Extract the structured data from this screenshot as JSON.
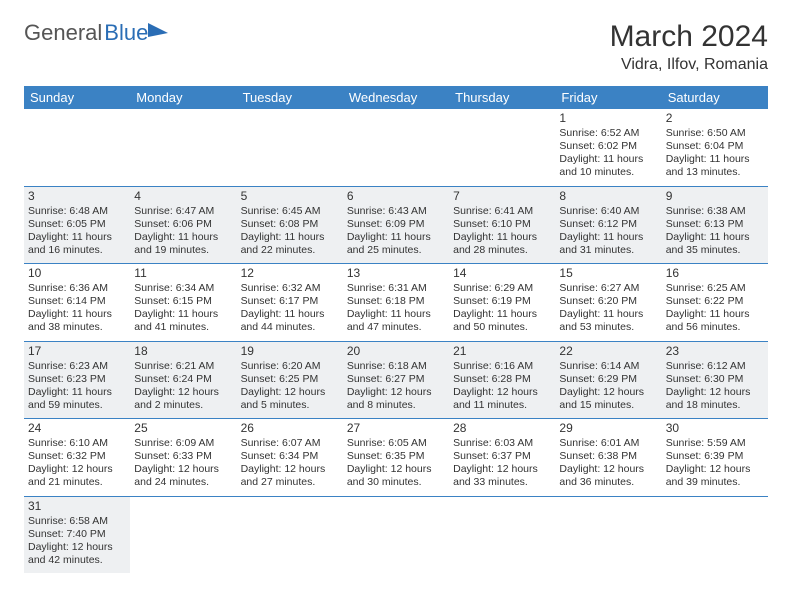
{
  "logo": {
    "part1": "General",
    "part2": "Blue"
  },
  "title": "March 2024",
  "location": "Vidra, Ilfov, Romania",
  "header_bg": "#3b82c4",
  "alt_row_bg": "#eef0f2",
  "days_of_week": [
    "Sunday",
    "Monday",
    "Tuesday",
    "Wednesday",
    "Thursday",
    "Friday",
    "Saturday"
  ],
  "weeks": [
    [
      null,
      null,
      null,
      null,
      null,
      {
        "n": "1",
        "sr": "Sunrise: 6:52 AM",
        "ss": "Sunset: 6:02 PM",
        "d1": "Daylight: 11 hours",
        "d2": "and 10 minutes."
      },
      {
        "n": "2",
        "sr": "Sunrise: 6:50 AM",
        "ss": "Sunset: 6:04 PM",
        "d1": "Daylight: 11 hours",
        "d2": "and 13 minutes."
      }
    ],
    [
      {
        "n": "3",
        "sr": "Sunrise: 6:48 AM",
        "ss": "Sunset: 6:05 PM",
        "d1": "Daylight: 11 hours",
        "d2": "and 16 minutes."
      },
      {
        "n": "4",
        "sr": "Sunrise: 6:47 AM",
        "ss": "Sunset: 6:06 PM",
        "d1": "Daylight: 11 hours",
        "d2": "and 19 minutes."
      },
      {
        "n": "5",
        "sr": "Sunrise: 6:45 AM",
        "ss": "Sunset: 6:08 PM",
        "d1": "Daylight: 11 hours",
        "d2": "and 22 minutes."
      },
      {
        "n": "6",
        "sr": "Sunrise: 6:43 AM",
        "ss": "Sunset: 6:09 PM",
        "d1": "Daylight: 11 hours",
        "d2": "and 25 minutes."
      },
      {
        "n": "7",
        "sr": "Sunrise: 6:41 AM",
        "ss": "Sunset: 6:10 PM",
        "d1": "Daylight: 11 hours",
        "d2": "and 28 minutes."
      },
      {
        "n": "8",
        "sr": "Sunrise: 6:40 AM",
        "ss": "Sunset: 6:12 PM",
        "d1": "Daylight: 11 hours",
        "d2": "and 31 minutes."
      },
      {
        "n": "9",
        "sr": "Sunrise: 6:38 AM",
        "ss": "Sunset: 6:13 PM",
        "d1": "Daylight: 11 hours",
        "d2": "and 35 minutes."
      }
    ],
    [
      {
        "n": "10",
        "sr": "Sunrise: 6:36 AM",
        "ss": "Sunset: 6:14 PM",
        "d1": "Daylight: 11 hours",
        "d2": "and 38 minutes."
      },
      {
        "n": "11",
        "sr": "Sunrise: 6:34 AM",
        "ss": "Sunset: 6:15 PM",
        "d1": "Daylight: 11 hours",
        "d2": "and 41 minutes."
      },
      {
        "n": "12",
        "sr": "Sunrise: 6:32 AM",
        "ss": "Sunset: 6:17 PM",
        "d1": "Daylight: 11 hours",
        "d2": "and 44 minutes."
      },
      {
        "n": "13",
        "sr": "Sunrise: 6:31 AM",
        "ss": "Sunset: 6:18 PM",
        "d1": "Daylight: 11 hours",
        "d2": "and 47 minutes."
      },
      {
        "n": "14",
        "sr": "Sunrise: 6:29 AM",
        "ss": "Sunset: 6:19 PM",
        "d1": "Daylight: 11 hours",
        "d2": "and 50 minutes."
      },
      {
        "n": "15",
        "sr": "Sunrise: 6:27 AM",
        "ss": "Sunset: 6:20 PM",
        "d1": "Daylight: 11 hours",
        "d2": "and 53 minutes."
      },
      {
        "n": "16",
        "sr": "Sunrise: 6:25 AM",
        "ss": "Sunset: 6:22 PM",
        "d1": "Daylight: 11 hours",
        "d2": "and 56 minutes."
      }
    ],
    [
      {
        "n": "17",
        "sr": "Sunrise: 6:23 AM",
        "ss": "Sunset: 6:23 PM",
        "d1": "Daylight: 11 hours",
        "d2": "and 59 minutes."
      },
      {
        "n": "18",
        "sr": "Sunrise: 6:21 AM",
        "ss": "Sunset: 6:24 PM",
        "d1": "Daylight: 12 hours",
        "d2": "and 2 minutes."
      },
      {
        "n": "19",
        "sr": "Sunrise: 6:20 AM",
        "ss": "Sunset: 6:25 PM",
        "d1": "Daylight: 12 hours",
        "d2": "and 5 minutes."
      },
      {
        "n": "20",
        "sr": "Sunrise: 6:18 AM",
        "ss": "Sunset: 6:27 PM",
        "d1": "Daylight: 12 hours",
        "d2": "and 8 minutes."
      },
      {
        "n": "21",
        "sr": "Sunrise: 6:16 AM",
        "ss": "Sunset: 6:28 PM",
        "d1": "Daylight: 12 hours",
        "d2": "and 11 minutes."
      },
      {
        "n": "22",
        "sr": "Sunrise: 6:14 AM",
        "ss": "Sunset: 6:29 PM",
        "d1": "Daylight: 12 hours",
        "d2": "and 15 minutes."
      },
      {
        "n": "23",
        "sr": "Sunrise: 6:12 AM",
        "ss": "Sunset: 6:30 PM",
        "d1": "Daylight: 12 hours",
        "d2": "and 18 minutes."
      }
    ],
    [
      {
        "n": "24",
        "sr": "Sunrise: 6:10 AM",
        "ss": "Sunset: 6:32 PM",
        "d1": "Daylight: 12 hours",
        "d2": "and 21 minutes."
      },
      {
        "n": "25",
        "sr": "Sunrise: 6:09 AM",
        "ss": "Sunset: 6:33 PM",
        "d1": "Daylight: 12 hours",
        "d2": "and 24 minutes."
      },
      {
        "n": "26",
        "sr": "Sunrise: 6:07 AM",
        "ss": "Sunset: 6:34 PM",
        "d1": "Daylight: 12 hours",
        "d2": "and 27 minutes."
      },
      {
        "n": "27",
        "sr": "Sunrise: 6:05 AM",
        "ss": "Sunset: 6:35 PM",
        "d1": "Daylight: 12 hours",
        "d2": "and 30 minutes."
      },
      {
        "n": "28",
        "sr": "Sunrise: 6:03 AM",
        "ss": "Sunset: 6:37 PM",
        "d1": "Daylight: 12 hours",
        "d2": "and 33 minutes."
      },
      {
        "n": "29",
        "sr": "Sunrise: 6:01 AM",
        "ss": "Sunset: 6:38 PM",
        "d1": "Daylight: 12 hours",
        "d2": "and 36 minutes."
      },
      {
        "n": "30",
        "sr": "Sunrise: 5:59 AM",
        "ss": "Sunset: 6:39 PM",
        "d1": "Daylight: 12 hours",
        "d2": "and 39 minutes."
      }
    ],
    [
      {
        "n": "31",
        "sr": "Sunrise: 6:58 AM",
        "ss": "Sunset: 7:40 PM",
        "d1": "Daylight: 12 hours",
        "d2": "and 42 minutes."
      },
      null,
      null,
      null,
      null,
      null,
      null
    ]
  ]
}
